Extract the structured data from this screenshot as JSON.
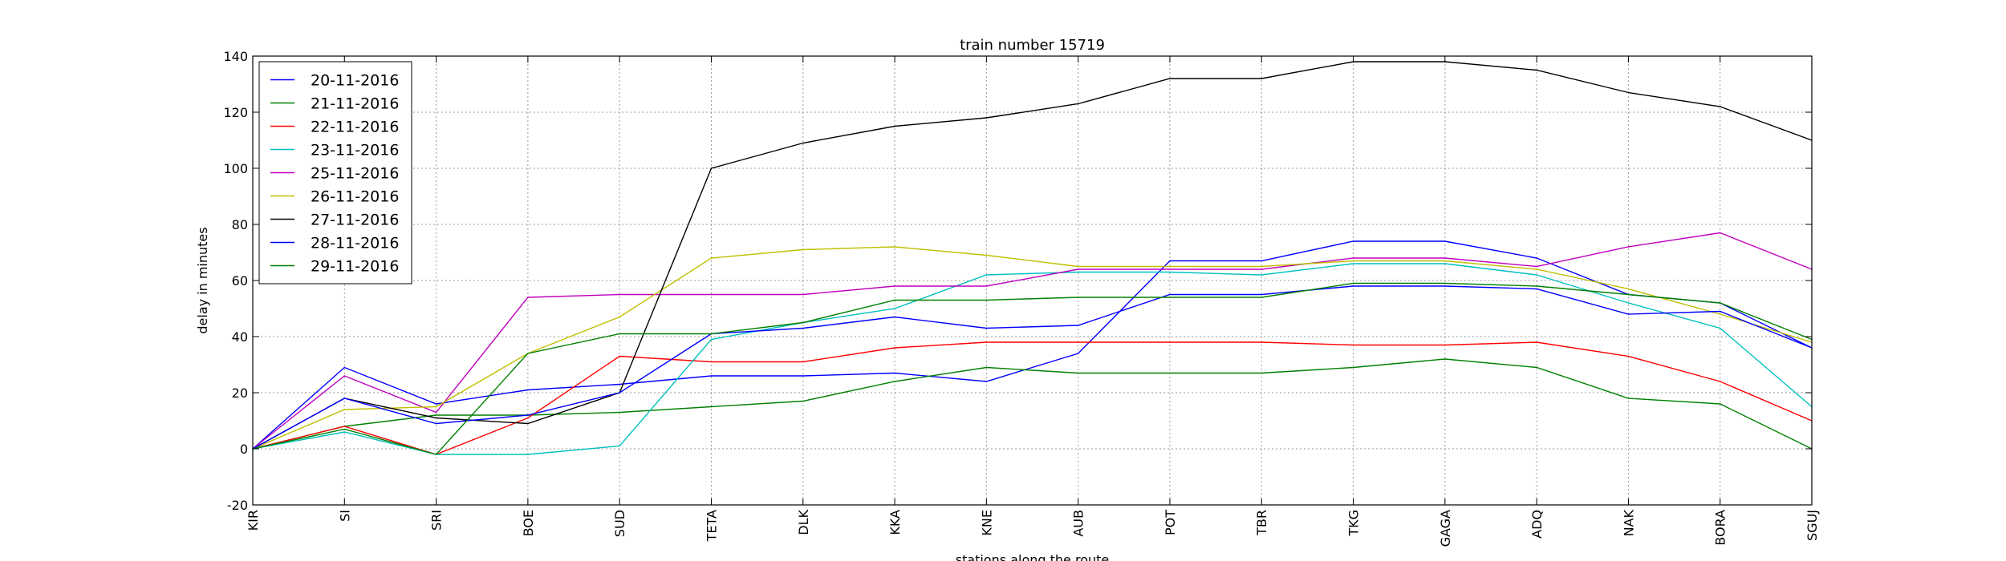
{
  "chart_data": {
    "type": "line",
    "title": "train number 15719",
    "xlabel": "stations along the route",
    "ylabel": "delay in minutes",
    "ylim": [
      -20,
      140
    ],
    "yticks": [
      -20,
      0,
      20,
      40,
      60,
      80,
      100,
      120,
      140
    ],
    "grid": true,
    "legend_position": "top-left",
    "categories": [
      "KIR",
      "SI",
      "SRI",
      "BOE",
      "SUD",
      "TETA",
      "DLK",
      "KKA",
      "KNE",
      "AUB",
      "POT",
      "TBR",
      "TKG",
      "GAGA",
      "ADQ",
      "NAK",
      "BORA",
      "SGUJ"
    ],
    "series": [
      {
        "name": "20-11-2016",
        "color": "#0000ff",
        "values": [
          0,
          29,
          16,
          21,
          23,
          26,
          26,
          27,
          24,
          34,
          67,
          67,
          74,
          74,
          68,
          55,
          52,
          36
        ]
      },
      {
        "name": "21-11-2016",
        "color": "#008000",
        "values": [
          0,
          8,
          12,
          12,
          13,
          15,
          17,
          24,
          29,
          27,
          27,
          27,
          29,
          32,
          29,
          18,
          16,
          0
        ]
      },
      {
        "name": "22-11-2016",
        "color": "#ff0000",
        "values": [
          0,
          8,
          -2,
          11,
          33,
          31,
          31,
          36,
          38,
          38,
          38,
          38,
          37,
          37,
          38,
          33,
          24,
          10
        ]
      },
      {
        "name": "23-11-2016",
        "color": "#00bfbf",
        "values": [
          0,
          6,
          -2,
          -2,
          1,
          39,
          45,
          50,
          62,
          63,
          63,
          62,
          66,
          66,
          62,
          52,
          43,
          15
        ]
      },
      {
        "name": "25-11-2016",
        "color": "#bf00bf",
        "values": [
          0,
          26,
          13,
          54,
          55,
          55,
          55,
          58,
          58,
          64,
          64,
          64,
          68,
          68,
          65,
          72,
          77,
          64
        ]
      },
      {
        "name": "26-11-2016",
        "color": "#bfbf00",
        "values": [
          0,
          14,
          15,
          34,
          47,
          68,
          71,
          72,
          69,
          65,
          65,
          65,
          67,
          67,
          64,
          57,
          48,
          38
        ]
      },
      {
        "name": "27-11-2016",
        "color": "#000000",
        "values": [
          0,
          18,
          11,
          9,
          20,
          100,
          109,
          115,
          118,
          123,
          132,
          132,
          138,
          138,
          135,
          127,
          122,
          110
        ]
      },
      {
        "name": "28-11-2016",
        "color": "#0000ff",
        "values": [
          0,
          18,
          9,
          12,
          20,
          41,
          43,
          47,
          43,
          44,
          55,
          55,
          58,
          58,
          57,
          48,
          49,
          36
        ]
      },
      {
        "name": "29-11-2016",
        "color": "#008000",
        "values": [
          0,
          7,
          -2,
          34,
          41,
          41,
          45,
          53,
          53,
          54,
          54,
          54,
          59,
          59,
          58,
          55,
          52,
          39
        ]
      }
    ]
  }
}
